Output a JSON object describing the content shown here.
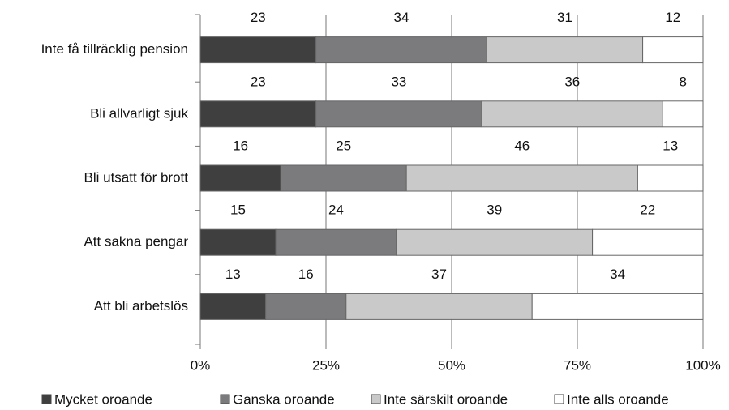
{
  "chart_data": {
    "type": "stacked-hbar",
    "categories": [
      "Inte få tillräcklig pension",
      "Bli allvarligt sjuk",
      "Bli utsatt för brott",
      "Att sakna pengar",
      "Att bli arbetslös"
    ],
    "series": [
      {
        "name": "Mycket oroande",
        "color": "#3f3f40",
        "values": [
          23,
          23,
          16,
          15,
          13
        ]
      },
      {
        "name": "Ganska oroande",
        "color": "#7b7b7d",
        "values": [
          34,
          33,
          25,
          24,
          16
        ]
      },
      {
        "name": "Inte särskilt oroande",
        "color": "#c9c9c9",
        "values": [
          31,
          36,
          46,
          39,
          37
        ]
      },
      {
        "name": "Inte alls oroande",
        "color": "#ffffff",
        "values": [
          12,
          8,
          13,
          22,
          34
        ]
      }
    ],
    "xlim": [
      0,
      100
    ],
    "xticks": [
      {
        "value": 0,
        "label": "0%"
      },
      {
        "value": 25,
        "label": "25%"
      },
      {
        "value": 50,
        "label": "50%"
      },
      {
        "value": 75,
        "label": "75%"
      },
      {
        "value": 100,
        "label": "100%"
      }
    ],
    "grid": true
  }
}
